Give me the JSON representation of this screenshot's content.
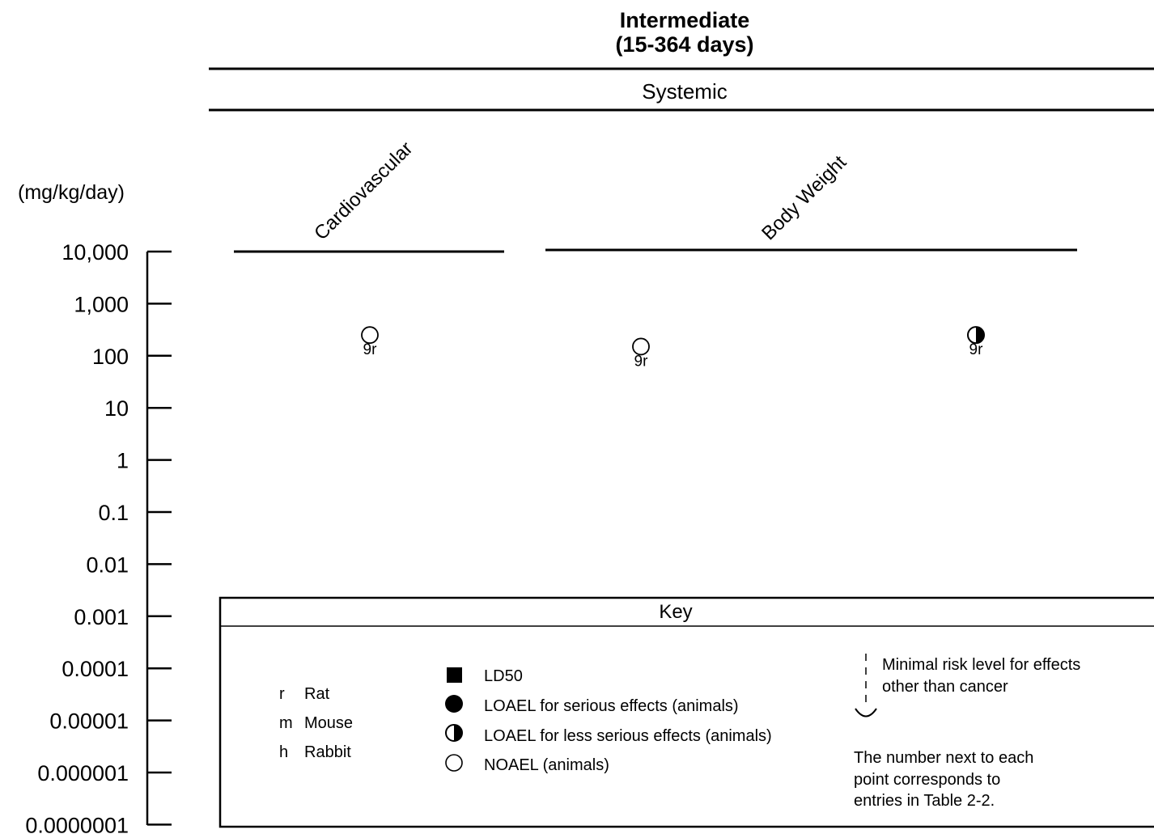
{
  "header": {
    "title_line1": "Intermediate",
    "title_line2": "(15-364 days)",
    "category": "Systemic"
  },
  "chart_data": {
    "type": "scatter",
    "yscale": "log",
    "ylabel": "(mg/kg/day)",
    "ylim": [
      1e-07,
      10000
    ],
    "yticks": [
      "10,000",
      "1,000",
      "100",
      "10",
      "1",
      "0.1",
      "0.01",
      "0.001",
      "0.0001",
      "0.00001",
      "0.000001",
      "0.0000001"
    ],
    "columns": [
      "Cardiovascular",
      "Body Weight"
    ],
    "points": [
      {
        "column": "Cardiovascular",
        "dose": 250,
        "effect": "NOAEL",
        "label": "9r"
      },
      {
        "column": "Body Weight",
        "dose": 150,
        "effect": "NOAEL",
        "label": "9r"
      },
      {
        "column": "Body Weight",
        "dose": 250,
        "effect": "LOAEL-less-serious",
        "label": "9r"
      }
    ]
  },
  "key": {
    "title": "Key",
    "species": [
      {
        "code": "r",
        "name": "Rat"
      },
      {
        "code": "m",
        "name": "Mouse"
      },
      {
        "code": "h",
        "name": "Rabbit"
      }
    ],
    "symbols": [
      {
        "marker": "filled-square",
        "label": "LD50"
      },
      {
        "marker": "filled-circle",
        "label": "LOAEL for serious effects (animals)"
      },
      {
        "marker": "half-circle",
        "label": "LOAEL for  less serious effects (animals)"
      },
      {
        "marker": "open-circle",
        "label": "NOAEL (animals)"
      }
    ],
    "mrl_line1": "Minimal risk level for effects",
    "mrl_line2": "other than cancer",
    "note_line1": "The number next to each",
    "note_line2": "point corresponds to",
    "note_line3": "entries in Table 2-2."
  }
}
